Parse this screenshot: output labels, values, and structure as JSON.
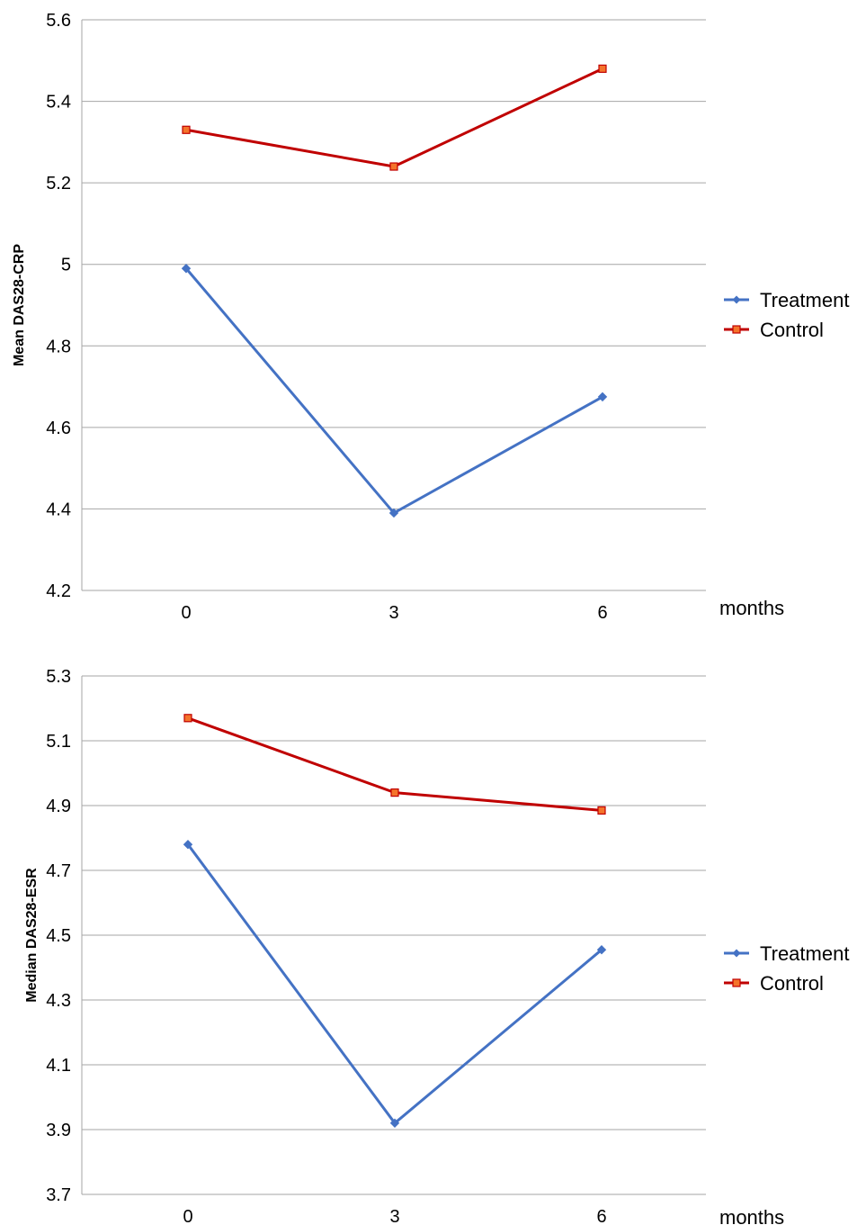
{
  "chart_data": [
    {
      "type": "line",
      "ylabel": "Mean DAS28-CRP",
      "xlabel": "months",
      "categories": [
        "0",
        "3",
        "6"
      ],
      "ylim": [
        4.2,
        5.6
      ],
      "yticks": [
        "4.2",
        "4.4",
        "4.6",
        "4.8",
        "5",
        "5.2",
        "5.4",
        "5.6"
      ],
      "grid": true,
      "legend_position": "right",
      "series": [
        {
          "name": "Treatment",
          "color": "#4472C4",
          "marker": "diamond",
          "values": [
            4.99,
            4.39,
            4.675
          ]
        },
        {
          "name": "Control",
          "color": "#C00000",
          "marker": "square",
          "marker_fill": "#F4742B",
          "values": [
            5.33,
            5.24,
            5.48
          ]
        }
      ]
    },
    {
      "type": "line",
      "ylabel": "Median DAS28-ESR",
      "xlabel": "months",
      "categories": [
        "0",
        "3",
        "6"
      ],
      "ylim": [
        3.7,
        5.3
      ],
      "yticks": [
        "3.7",
        "3.9",
        "4.1",
        "4.3",
        "4.5",
        "4.7",
        "4.9",
        "5.1",
        "5.3"
      ],
      "grid": true,
      "legend_position": "right",
      "series": [
        {
          "name": "Treatment",
          "color": "#4472C4",
          "marker": "diamond",
          "values": [
            4.78,
            3.92,
            4.455
          ]
        },
        {
          "name": "Control",
          "color": "#C00000",
          "marker": "square",
          "marker_fill": "#F4742B",
          "values": [
            5.17,
            4.94,
            4.885
          ]
        }
      ]
    }
  ]
}
